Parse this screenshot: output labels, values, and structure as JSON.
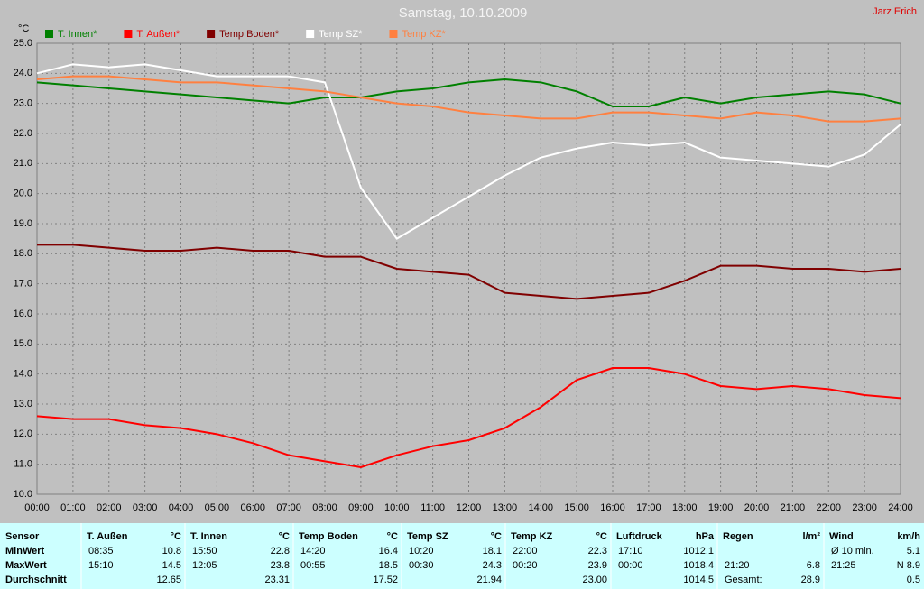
{
  "chart_data": {
    "type": "line",
    "title": "Samstag, 10.10.2009",
    "author": "Jarz Erich",
    "y_label": "°C",
    "categories": [
      "00:00",
      "01:00",
      "02:00",
      "03:00",
      "04:00",
      "05:00",
      "06:00",
      "07:00",
      "08:00",
      "09:00",
      "10:00",
      "11:00",
      "12:00",
      "13:00",
      "14:00",
      "15:00",
      "16:00",
      "17:00",
      "18:00",
      "19:00",
      "20:00",
      "21:00",
      "22:00",
      "23:00",
      "24:00"
    ],
    "series": [
      {
        "name": "T. Innen*",
        "color": "#008000",
        "values": [
          23.7,
          23.6,
          23.5,
          23.4,
          23.3,
          23.2,
          23.1,
          23.0,
          23.2,
          23.2,
          23.4,
          23.5,
          23.7,
          23.8,
          23.7,
          23.4,
          22.9,
          22.9,
          23.2,
          23.0,
          23.2,
          23.3,
          23.4,
          23.3,
          23.0
        ]
      },
      {
        "name": "T. Außen*",
        "color": "#ff0000",
        "values": [
          12.6,
          12.5,
          12.5,
          12.3,
          12.2,
          12.0,
          11.7,
          11.3,
          11.1,
          10.9,
          11.3,
          11.6,
          11.8,
          12.2,
          12.9,
          13.8,
          14.2,
          14.2,
          14.0,
          13.6,
          13.5,
          13.6,
          13.5,
          13.3,
          13.2
        ]
      },
      {
        "name": "Temp Boden*",
        "color": "#800000",
        "values": [
          18.3,
          18.3,
          18.2,
          18.1,
          18.1,
          18.2,
          18.1,
          18.1,
          17.9,
          17.9,
          17.5,
          17.4,
          17.3,
          16.7,
          16.6,
          16.5,
          16.6,
          16.7,
          17.1,
          17.6,
          17.6,
          17.5,
          17.5,
          17.4,
          17.5
        ]
      },
      {
        "name": "Temp SZ*",
        "color": "#ffffff",
        "values": [
          24.0,
          24.3,
          24.2,
          24.3,
          24.1,
          23.9,
          23.9,
          23.9,
          23.7,
          20.2,
          18.5,
          19.2,
          19.9,
          20.6,
          21.2,
          21.5,
          21.7,
          21.6,
          21.7,
          21.2,
          21.1,
          21.0,
          20.9,
          21.3,
          22.3
        ]
      },
      {
        "name": "Temp KZ*",
        "color": "#ff8040",
        "values": [
          23.8,
          23.9,
          23.9,
          23.8,
          23.7,
          23.7,
          23.6,
          23.5,
          23.4,
          23.2,
          23.0,
          22.9,
          22.7,
          22.6,
          22.5,
          22.5,
          22.7,
          22.7,
          22.6,
          22.5,
          22.7,
          22.6,
          22.4,
          22.4,
          22.5
        ]
      }
    ],
    "ylim": [
      10,
      25
    ],
    "yticks": [
      {
        "value": 10,
        "label": "10.0"
      },
      {
        "value": 11,
        "label": "11.0"
      },
      {
        "value": 12,
        "label": "12.0"
      },
      {
        "value": 13,
        "label": "13.0"
      },
      {
        "value": 14,
        "label": "14.0"
      },
      {
        "value": 15,
        "label": "15.0"
      },
      {
        "value": 16,
        "label": "16.0"
      },
      {
        "value": 17,
        "label": "17.0"
      },
      {
        "value": 18,
        "label": "18.0"
      },
      {
        "value": 19,
        "label": "19.0"
      },
      {
        "value": 20,
        "label": "20.0"
      },
      {
        "value": 21,
        "label": "21.0"
      },
      {
        "value": 22,
        "label": "22.0"
      },
      {
        "value": 23,
        "label": "23.0"
      },
      {
        "value": 24,
        "label": "24.0"
      },
      {
        "value": 25,
        "label": "25.0"
      }
    ],
    "grid": true
  },
  "table": {
    "corner": "Sensor",
    "columns": [
      {
        "name": "T. Außen",
        "unit": "°C"
      },
      {
        "name": "T. Innen",
        "unit": "°C"
      },
      {
        "name": "Temp Boden",
        "unit": "°C"
      },
      {
        "name": "Temp SZ",
        "unit": "°C"
      },
      {
        "name": "Temp KZ",
        "unit": "°C"
      },
      {
        "name": "Luftdruck",
        "unit": "hPa"
      },
      {
        "name": "Regen",
        "unit": "l/m²"
      },
      {
        "name": "Wind",
        "unit": "km/h"
      }
    ],
    "rows": [
      {
        "label": "MinWert",
        "cells": [
          [
            "08:35",
            "10.8"
          ],
          [
            "15:50",
            "22.8"
          ],
          [
            "14:20",
            "16.4"
          ],
          [
            "10:20",
            "18.1"
          ],
          [
            "22:00",
            "22.3"
          ],
          [
            "17:10",
            "1012.1"
          ],
          [
            null,
            null
          ],
          [
            "Ø 10 min.",
            "5.1"
          ]
        ]
      },
      {
        "label": "MaxWert",
        "cells": [
          [
            "15:10",
            "14.5"
          ],
          [
            "12:05",
            "23.8"
          ],
          [
            "00:55",
            "18.5"
          ],
          [
            "00:30",
            "24.3"
          ],
          [
            "00:20",
            "23.9"
          ],
          [
            "00:00",
            "1018.4"
          ],
          [
            "21:20",
            "6.8"
          ],
          [
            "21:25",
            "N 8.9"
          ]
        ]
      },
      {
        "label": "Durchschnitt",
        "cells": [
          [
            null,
            "12.65"
          ],
          [
            null,
            "23.31"
          ],
          [
            null,
            "17.52"
          ],
          [
            null,
            "21.94"
          ],
          [
            null,
            "23.00"
          ],
          [
            null,
            "1014.5"
          ],
          [
            "Gesamt:",
            "28.9"
          ],
          [
            null,
            "0.5"
          ]
        ]
      }
    ]
  }
}
